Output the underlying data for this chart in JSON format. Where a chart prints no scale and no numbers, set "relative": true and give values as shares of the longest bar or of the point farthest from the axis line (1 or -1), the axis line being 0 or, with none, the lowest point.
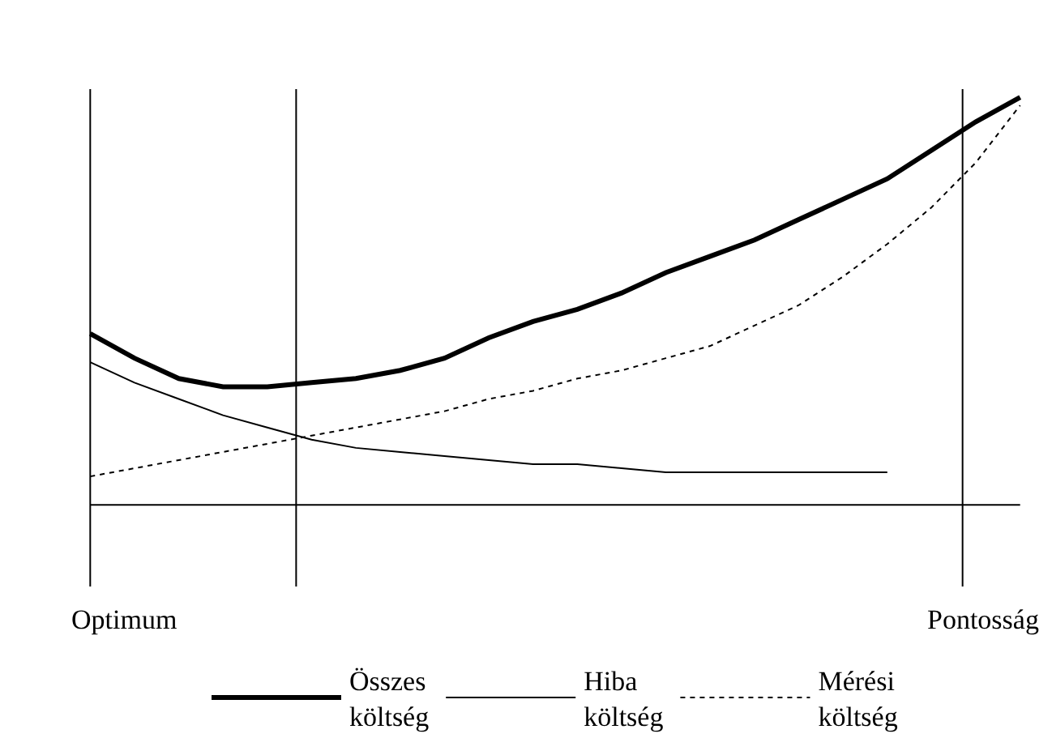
{
  "chart_data": {
    "type": "line",
    "relative": true,
    "legend": "bottom",
    "marker": "none",
    "categories": [
      null,
      null,
      null,
      null,
      null,
      null,
      null,
      null,
      null,
      null,
      null,
      null,
      null,
      null,
      null,
      null,
      null,
      null,
      null,
      null,
      null,
      null
    ],
    "series": [
      {
        "name": "Összes\nköltség",
        "color": "#000000",
        "line_style": "solid",
        "values": [
          0.42,
          0.36,
          0.31,
          0.29,
          0.29,
          0.3,
          0.31,
          0.33,
          0.36,
          0.41,
          0.45,
          0.48,
          0.52,
          0.57,
          0.61,
          0.65,
          0.7,
          0.75,
          0.8,
          0.87,
          0.94,
          1.0
        ]
      },
      {
        "name": "Hiba\nköltség",
        "color": "#000000",
        "line_style": "solid",
        "values": [
          0.35,
          0.3,
          0.26,
          0.22,
          0.19,
          0.16,
          0.14,
          0.13,
          0.12,
          0.11,
          0.1,
          0.1,
          0.09,
          0.08,
          0.08,
          0.08,
          0.08,
          0.08,
          0.08,
          null,
          null,
          null
        ]
      },
      {
        "name": "Mérési\nköltség",
        "color": "#000000",
        "line_style": "dotted",
        "values": [
          0.07,
          0.09,
          0.11,
          0.13,
          0.15,
          0.17,
          0.19,
          0.21,
          0.23,
          0.26,
          0.28,
          0.31,
          0.33,
          0.36,
          0.39,
          0.44,
          0.49,
          0.56,
          0.64,
          0.73,
          0.84,
          0.98
        ]
      }
    ],
    "annotations": [
      "Optimum",
      "Pontosság"
    ]
  }
}
